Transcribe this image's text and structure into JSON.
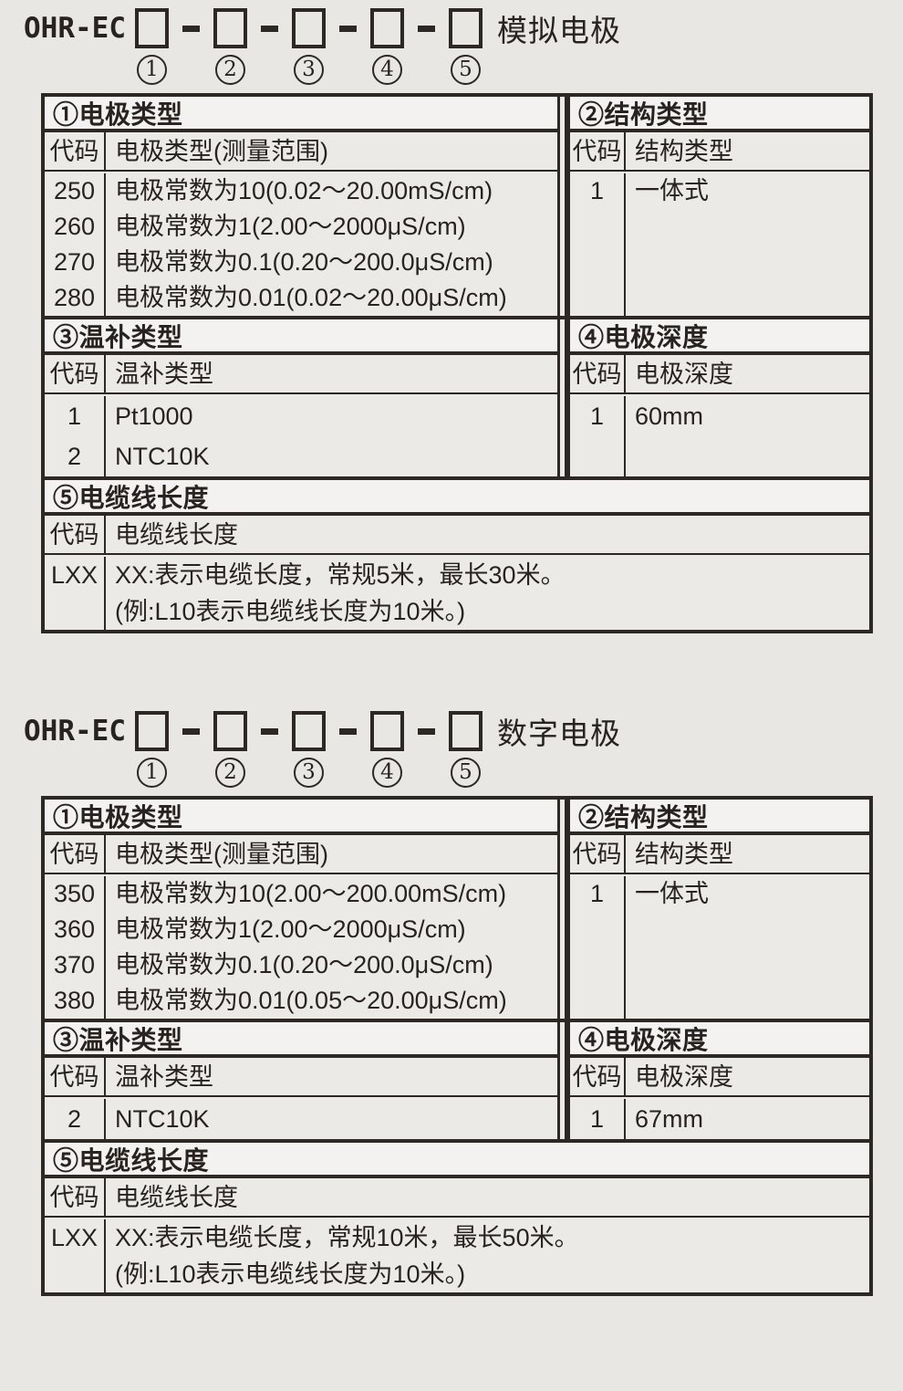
{
  "page_bg": "#e9e7e4",
  "border_color": "#2e2824",
  "text_color": "#282320",
  "blocks": [
    {
      "prefix": "OHR-EC",
      "label": "模拟电极",
      "digits": [
        "1",
        "2",
        "3",
        "4",
        "5"
      ],
      "bands": [
        {
          "left": {
            "title": "①电极类型",
            "head": [
              "代码",
              "电极类型(测量范围)"
            ],
            "rows": [
              {
                "code": "250",
                "desc": "电极常数为10(0.02～20.00mS/cm)"
              },
              {
                "code": "260",
                "desc": "电极常数为1(2.00～2000μS/cm)"
              },
              {
                "code": "270",
                "desc": "电极常数为0.1(0.20～200.0μS/cm)"
              },
              {
                "code": "280",
                "desc": "电极常数为0.01(0.02～20.00μS/cm)"
              }
            ]
          },
          "right": {
            "title": "②结构类型",
            "head": [
              "代码",
              "结构类型"
            ],
            "rows": [
              {
                "code": "1",
                "desc": "一体式"
              }
            ]
          }
        },
        {
          "left": {
            "title": "③温补类型",
            "head": [
              "代码",
              "温补类型"
            ],
            "rows": [
              {
                "code": "1",
                "desc": "Pt1000"
              },
              {
                "code": "2",
                "desc": "NTC10K"
              }
            ]
          },
          "right": {
            "title": "④电极深度",
            "head": [
              "代码",
              "电极深度"
            ],
            "rows": [
              {
                "code": "1",
                "desc": "60mm"
              }
            ]
          }
        },
        {
          "full": {
            "title": "⑤电缆线长度",
            "head": [
              "代码",
              "电缆线长度"
            ],
            "rows": [
              {
                "code": "LXX",
                "lines": [
                  "XX:表示电缆长度，常规5米，最长30米。",
                  "(例:L10表示电缆线长度为10米。)"
                ]
              }
            ]
          }
        }
      ]
    },
    {
      "prefix": "OHR-EC",
      "label": "数字电极",
      "digits": [
        "1",
        "2",
        "3",
        "4",
        "5"
      ],
      "bands": [
        {
          "left": {
            "title": "①电极类型",
            "head": [
              "代码",
              "电极类型(测量范围)"
            ],
            "rows": [
              {
                "code": "350",
                "desc": "电极常数为10(2.00～200.00mS/cm)"
              },
              {
                "code": "360",
                "desc": "电极常数为1(2.00～2000μS/cm)"
              },
              {
                "code": "370",
                "desc": "电极常数为0.1(0.20～200.0μS/cm)"
              },
              {
                "code": "380",
                "desc": "电极常数为0.01(0.05～20.00μS/cm)"
              }
            ]
          },
          "right": {
            "title": "②结构类型",
            "head": [
              "代码",
              "结构类型"
            ],
            "rows": [
              {
                "code": "1",
                "desc": "一体式"
              }
            ]
          }
        },
        {
          "left": {
            "title": "③温补类型",
            "head": [
              "代码",
              "温补类型"
            ],
            "rows": [
              {
                "code": "2",
                "desc": "NTC10K"
              }
            ]
          },
          "right": {
            "title": "④电极深度",
            "head": [
              "代码",
              "电极深度"
            ],
            "rows": [
              {
                "code": "1",
                "desc": "67mm"
              }
            ]
          }
        },
        {
          "full": {
            "title": "⑤电缆线长度",
            "head": [
              "代码",
              "电缆线长度"
            ],
            "rows": [
              {
                "code": "LXX",
                "lines": [
                  "XX:表示电缆长度，常规10米，最长50米。",
                  "(例:L10表示电缆线长度为10米。)"
                ]
              }
            ]
          }
        }
      ]
    }
  ]
}
